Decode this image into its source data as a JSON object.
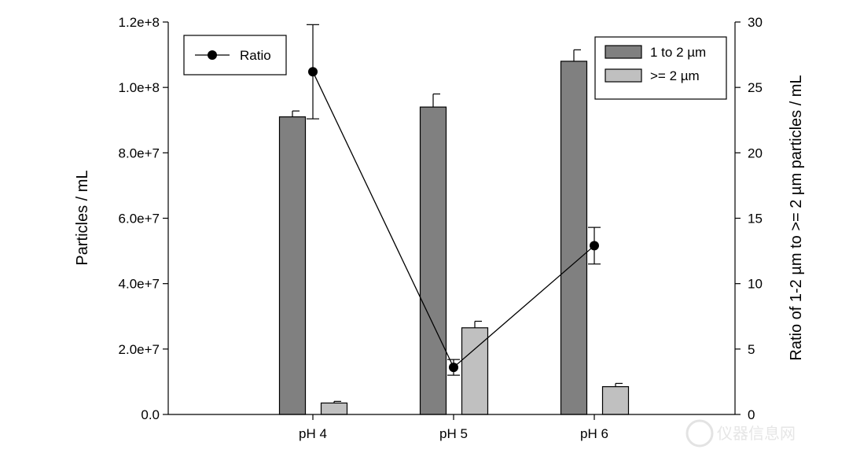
{
  "chart_data": {
    "type": "bar",
    "categories": [
      "pH 4",
      "pH 5",
      "pH 6"
    ],
    "ylabel": "Particles / mL",
    "y2label": "Ratio of 1-2 µm to >= 2 µm particles / mL",
    "ylim": [
      0,
      120000000
    ],
    "y2lim": [
      0,
      30
    ],
    "y_ticks": [
      "0.0",
      "2.0e+7",
      "4.0e+7",
      "6.0e+7",
      "8.0e+7",
      "1.0e+8",
      "1.2e+8"
    ],
    "y2_ticks": [
      "0",
      "5",
      "10",
      "15",
      "20",
      "25",
      "30"
    ],
    "series": [
      {
        "name": "1 to 2 µm",
        "type": "bar",
        "color": "#808080",
        "values": [
          91000000,
          94000000,
          108000000
        ],
        "errors": [
          1800000,
          4000000,
          3500000
        ]
      },
      {
        "name": ">= 2 µm",
        "type": "bar",
        "color": "#c0c0c0",
        "values": [
          3500000,
          26500000,
          8500000
        ],
        "errors": [
          500000,
          2000000,
          1000000
        ]
      },
      {
        "name": "Ratio",
        "type": "line",
        "axis": "right",
        "color": "#000000",
        "values": [
          26.2,
          3.6,
          12.9
        ],
        "errors": [
          3.6,
          0.6,
          1.4
        ]
      }
    ],
    "legends": [
      {
        "position": "top-left",
        "entries": [
          "Ratio"
        ]
      },
      {
        "position": "top-right",
        "entries": [
          "1 to 2 µm",
          ">= 2 µm"
        ]
      }
    ],
    "grid": false
  },
  "watermark": {
    "text": "仪器信息网"
  }
}
